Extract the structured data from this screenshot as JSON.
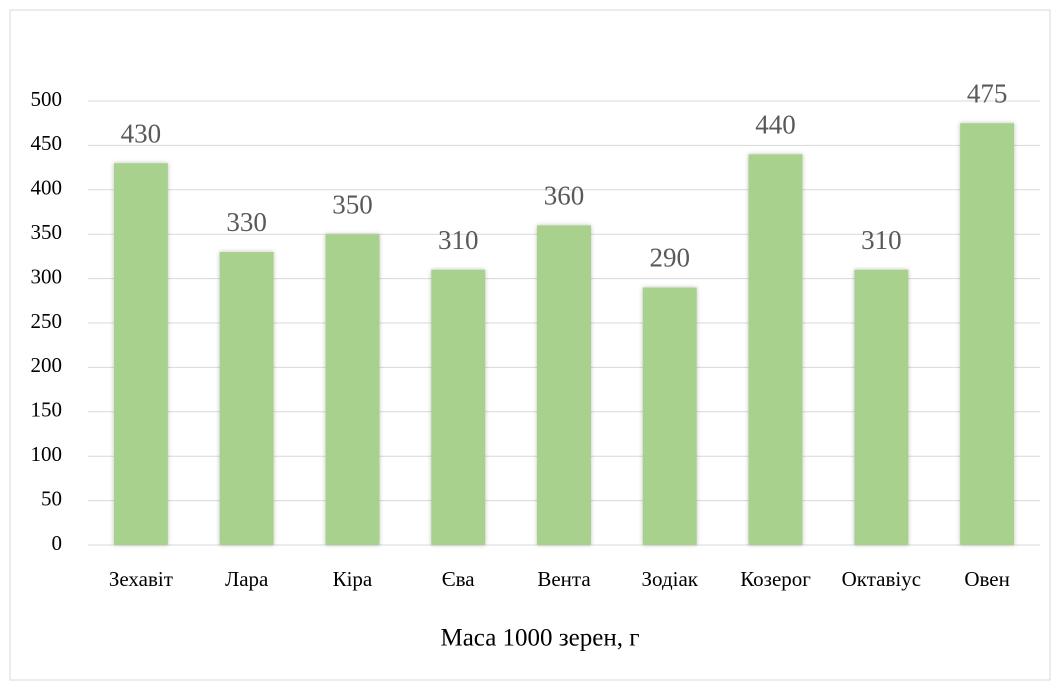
{
  "chart_data": {
    "type": "bar",
    "x_label": "Маса 1000 зерен, г",
    "categories": [
      "Зехавіт",
      "Лара",
      "Кіра",
      "Єва",
      "Вента",
      "Зодіак",
      "Козерог",
      "Октавіус",
      "Овен"
    ],
    "values": [
      430,
      330,
      350,
      310,
      360,
      290,
      440,
      310,
      475
    ],
    "color": "#a9d18e",
    "ylim": [
      0,
      500
    ],
    "yticks": [
      0,
      50,
      100,
      150,
      200,
      250,
      300,
      350,
      400,
      450,
      500
    ],
    "grid": true,
    "data_labels": true
  }
}
